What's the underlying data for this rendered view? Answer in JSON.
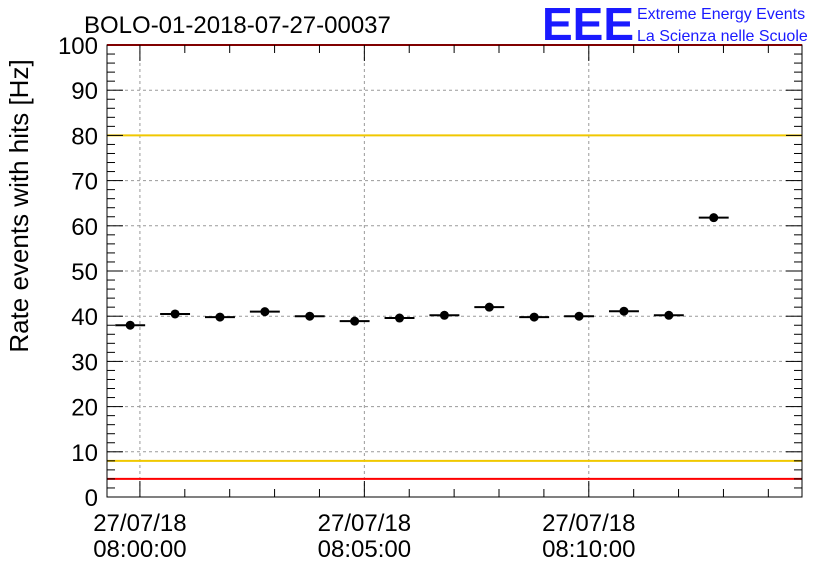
{
  "chart_data": {
    "type": "scatter",
    "title": "BOLO-01-2018-07-27-00037",
    "xlabel": "",
    "ylabel": "Rate events with hits [Hz]",
    "ylim": [
      0,
      100
    ],
    "yticks": [
      "0",
      "10",
      "20",
      "30",
      "40",
      "50",
      "60",
      "70",
      "80",
      "90",
      "100"
    ],
    "xlim": [
      "07:59:16",
      "08:14:45"
    ],
    "xticks": [
      {
        "t": "08:00:00",
        "date": "27/07/18",
        "time": "08:00:00"
      },
      {
        "t": "08:05:00",
        "date": "27/07/18",
        "time": "08:05:00"
      },
      {
        "t": "08:10:00",
        "date": "27/07/18",
        "time": "08:10:00"
      }
    ],
    "grid": true,
    "points": [
      {
        "x": "07:59:47",
        "y": 38.0,
        "xerr": "±20 s"
      },
      {
        "x": "08:00:47",
        "y": 40.5,
        "xerr": "±20 s"
      },
      {
        "x": "08:01:47",
        "y": 39.8,
        "xerr": "±20 s"
      },
      {
        "x": "08:02:47",
        "y": 41.0,
        "xerr": "±20 s"
      },
      {
        "x": "08:03:47",
        "y": 40.0,
        "xerr": "±20 s"
      },
      {
        "x": "08:04:47",
        "y": 38.9,
        "xerr": "±20 s"
      },
      {
        "x": "08:05:47",
        "y": 39.6,
        "xerr": "±20 s"
      },
      {
        "x": "08:06:47",
        "y": 40.2,
        "xerr": "±20 s"
      },
      {
        "x": "08:07:47",
        "y": 42.0,
        "xerr": "±20 s"
      },
      {
        "x": "08:08:47",
        "y": 39.8,
        "xerr": "±20 s"
      },
      {
        "x": "08:09:47",
        "y": 40.0,
        "xerr": "±20 s"
      },
      {
        "x": "08:10:47",
        "y": 41.1,
        "xerr": "±20 s"
      },
      {
        "x": "08:11:47",
        "y": 40.2,
        "xerr": "±20 s"
      },
      {
        "x": "08:12:47",
        "y": 61.8,
        "xerr": "±20 s"
      }
    ],
    "reference_lines": [
      {
        "y": 100,
        "color": "#ff0000"
      },
      {
        "y": 80,
        "color": "#f0c800"
      },
      {
        "y": 8,
        "color": "#f0c800"
      },
      {
        "y": 4,
        "color": "#ff0000"
      }
    ]
  },
  "logo": {
    "mark": "EEE",
    "line1": "Extreme Energy Events",
    "line2": "La Scienza nelle Scuole",
    "color": "#1a1aff"
  }
}
